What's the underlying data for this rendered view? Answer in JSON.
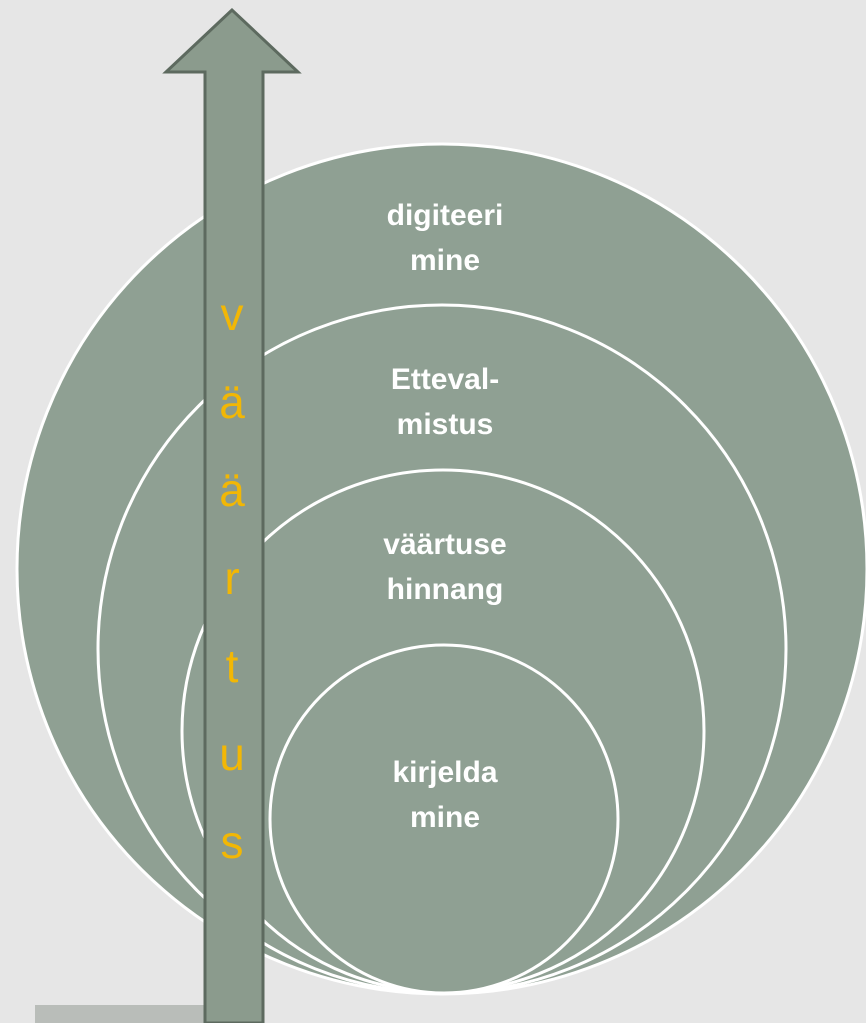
{
  "circles": [
    {
      "label": [
        "digiteeri",
        "mine"
      ]
    },
    {
      "label": [
        "Etteval-",
        "mistus"
      ]
    },
    {
      "label": [
        "väärtuse",
        "hinnang"
      ]
    },
    {
      "label": [
        "kirjelda",
        "mine"
      ]
    }
  ],
  "arrow": {
    "letters": [
      "v",
      "ä",
      "ä",
      "r",
      "t",
      "u",
      "s"
    ]
  }
}
